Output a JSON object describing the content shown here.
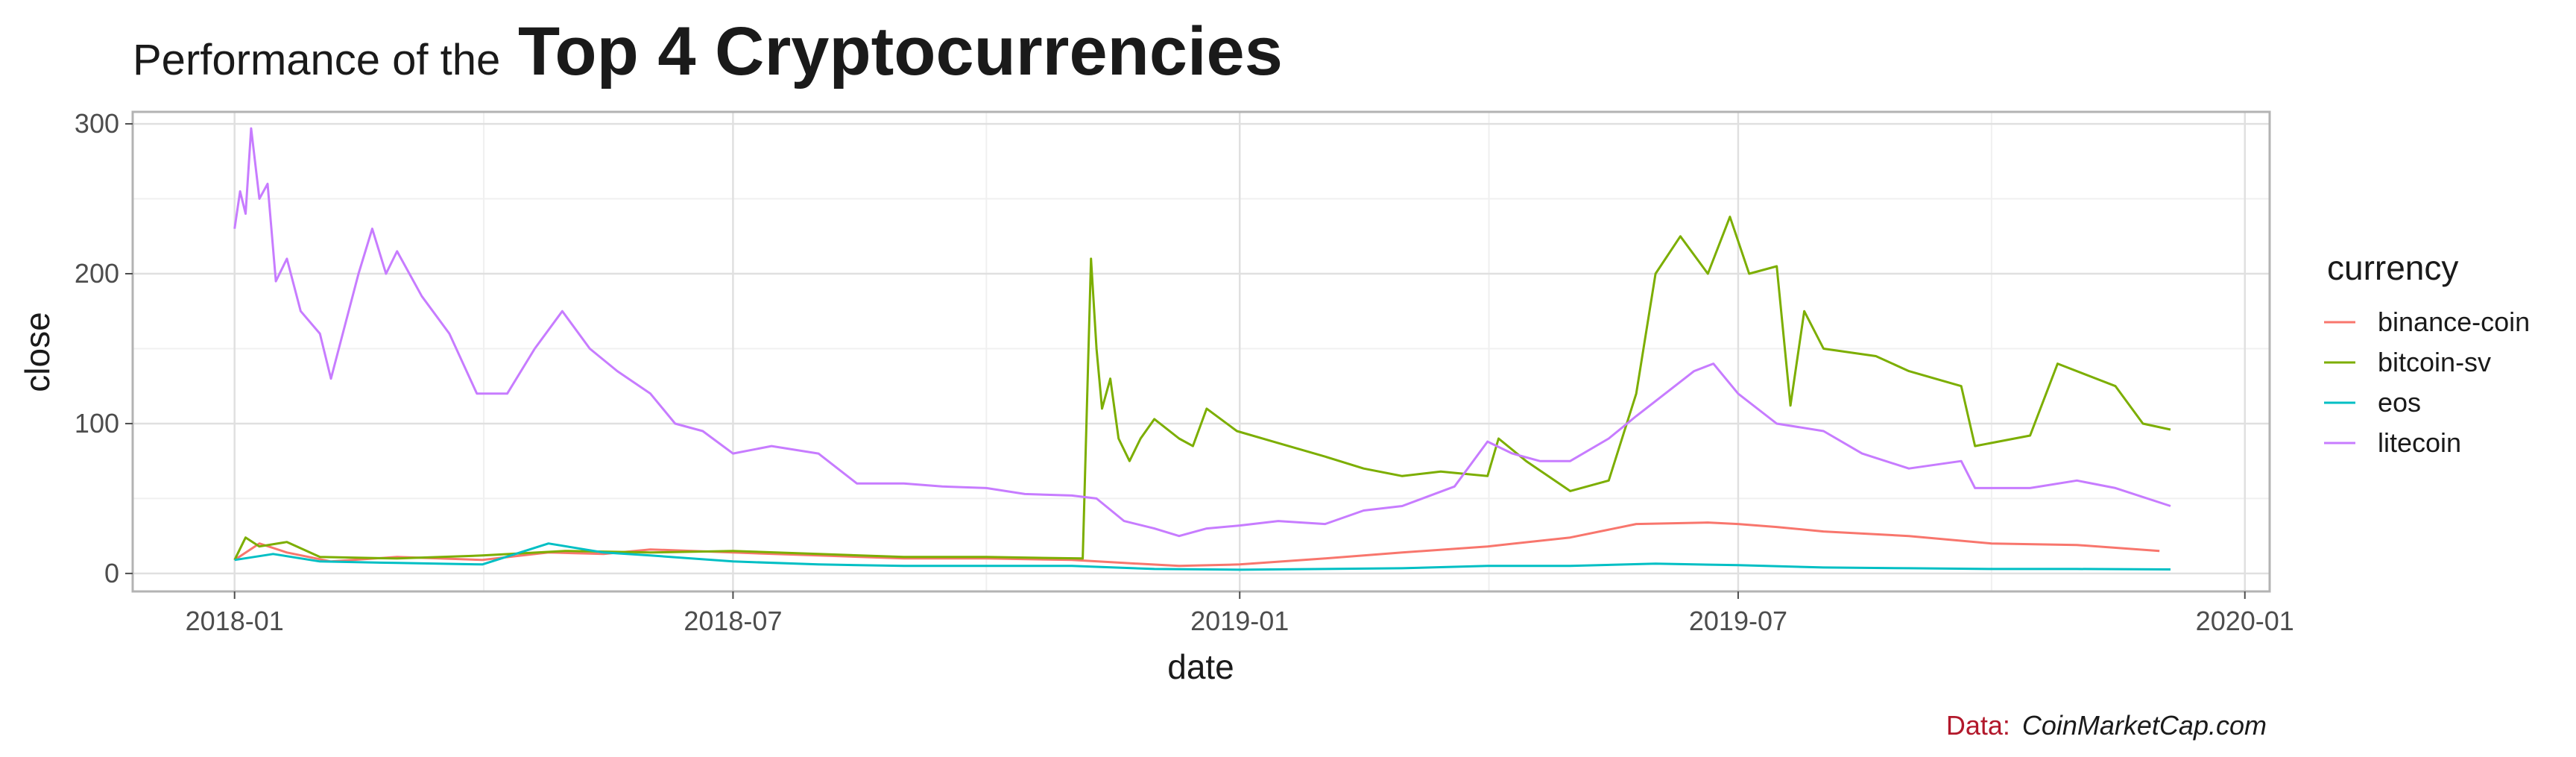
{
  "chart_data": {
    "type": "line",
    "title_prefix": "Performance of the",
    "title": "Top 4 Cryptocurrencies",
    "xlabel": "date",
    "ylabel": "close",
    "x_ticks": [
      "2018-01",
      "2018-07",
      "2019-01",
      "2019-07",
      "2020-01"
    ],
    "y_ticks": [
      0,
      100,
      200,
      300
    ],
    "xlim": [
      "2017-11-25",
      "2020-01-10"
    ],
    "ylim": [
      -12,
      308
    ],
    "grid": true,
    "legend_title": "currency",
    "legend_position": "right",
    "series": [
      {
        "name": "binance-coin",
        "color": "#F8766D",
        "points": [
          [
            "2018-01-01",
            9
          ],
          [
            "2018-01-10",
            20
          ],
          [
            "2018-01-20",
            14
          ],
          [
            "2018-02-05",
            8
          ],
          [
            "2018-03-01",
            11
          ],
          [
            "2018-04-01",
            9
          ],
          [
            "2018-04-25",
            14
          ],
          [
            "2018-05-15",
            13
          ],
          [
            "2018-06-01",
            16
          ],
          [
            "2018-07-01",
            14
          ],
          [
            "2018-08-01",
            12
          ],
          [
            "2018-09-01",
            10
          ],
          [
            "2018-10-01",
            10
          ],
          [
            "2018-11-01",
            9
          ],
          [
            "2018-11-20",
            7
          ],
          [
            "2018-12-10",
            5
          ],
          [
            "2019-01-01",
            6
          ],
          [
            "2019-02-01",
            10
          ],
          [
            "2019-03-01",
            14
          ],
          [
            "2019-04-01",
            18
          ],
          [
            "2019-05-01",
            24
          ],
          [
            "2019-05-25",
            33
          ],
          [
            "2019-06-20",
            34
          ],
          [
            "2019-07-01",
            33
          ],
          [
            "2019-07-15",
            31
          ],
          [
            "2019-08-01",
            28
          ],
          [
            "2019-09-01",
            25
          ],
          [
            "2019-10-01",
            20
          ],
          [
            "2019-11-01",
            19
          ],
          [
            "2019-12-01",
            15
          ]
        ]
      },
      {
        "name": "bitcoin-sv",
        "color": "#7CAE00",
        "points": [
          [
            "2018-01-01",
            9
          ],
          [
            "2018-01-05",
            24
          ],
          [
            "2018-01-10",
            18
          ],
          [
            "2018-01-20",
            21
          ],
          [
            "2018-02-01",
            11
          ],
          [
            "2018-03-01",
            10
          ],
          [
            "2018-04-01",
            12
          ],
          [
            "2018-05-01",
            15
          ],
          [
            "2018-06-01",
            14
          ],
          [
            "2018-07-01",
            15
          ],
          [
            "2018-08-01",
            13
          ],
          [
            "2018-09-01",
            11
          ],
          [
            "2018-10-01",
            11
          ],
          [
            "2018-11-05",
            10
          ],
          [
            "2018-11-08",
            210
          ],
          [
            "2018-11-10",
            150
          ],
          [
            "2018-11-12",
            110
          ],
          [
            "2018-11-15",
            130
          ],
          [
            "2018-11-18",
            90
          ],
          [
            "2018-11-22",
            75
          ],
          [
            "2018-11-26",
            90
          ],
          [
            "2018-12-01",
            103
          ],
          [
            "2018-12-10",
            90
          ],
          [
            "2018-12-15",
            85
          ],
          [
            "2018-12-20",
            110
          ],
          [
            "2018-12-31",
            95
          ],
          [
            "2019-01-15",
            87
          ],
          [
            "2019-02-01",
            78
          ],
          [
            "2019-02-15",
            70
          ],
          [
            "2019-03-01",
            65
          ],
          [
            "2019-03-15",
            68
          ],
          [
            "2019-04-01",
            65
          ],
          [
            "2019-04-05",
            90
          ],
          [
            "2019-04-15",
            75
          ],
          [
            "2019-05-01",
            55
          ],
          [
            "2019-05-15",
            62
          ],
          [
            "2019-05-25",
            120
          ],
          [
            "2019-06-01",
            200
          ],
          [
            "2019-06-10",
            225
          ],
          [
            "2019-06-20",
            200
          ],
          [
            "2019-06-28",
            238
          ],
          [
            "2019-07-05",
            200
          ],
          [
            "2019-07-15",
            205
          ],
          [
            "2019-07-20",
            112
          ],
          [
            "2019-07-25",
            175
          ],
          [
            "2019-08-01",
            150
          ],
          [
            "2019-08-20",
            145
          ],
          [
            "2019-09-01",
            135
          ],
          [
            "2019-09-20",
            125
          ],
          [
            "2019-09-25",
            85
          ],
          [
            "2019-10-15",
            92
          ],
          [
            "2019-10-25",
            140
          ],
          [
            "2019-11-15",
            125
          ],
          [
            "2019-11-25",
            100
          ],
          [
            "2019-12-05",
            96
          ]
        ]
      },
      {
        "name": "eos",
        "color": "#00BFC4",
        "points": [
          [
            "2018-01-01",
            9
          ],
          [
            "2018-01-15",
            13
          ],
          [
            "2018-02-01",
            8
          ],
          [
            "2018-03-01",
            7
          ],
          [
            "2018-04-01",
            6
          ],
          [
            "2018-04-25",
            20
          ],
          [
            "2018-05-15",
            14
          ],
          [
            "2018-06-01",
            12
          ],
          [
            "2018-07-01",
            8
          ],
          [
            "2018-08-01",
            6
          ],
          [
            "2018-09-01",
            5
          ],
          [
            "2018-10-01",
            5
          ],
          [
            "2018-11-01",
            5
          ],
          [
            "2018-12-01",
            3
          ],
          [
            "2019-01-01",
            2.5
          ],
          [
            "2019-02-01",
            3
          ],
          [
            "2019-03-01",
            3.5
          ],
          [
            "2019-04-01",
            5
          ],
          [
            "2019-05-01",
            5
          ],
          [
            "2019-06-01",
            6.5
          ],
          [
            "2019-07-01",
            5.5
          ],
          [
            "2019-08-01",
            4
          ],
          [
            "2019-09-01",
            3.5
          ],
          [
            "2019-10-01",
            3
          ],
          [
            "2019-11-01",
            3
          ],
          [
            "2019-12-05",
            2.7
          ]
        ]
      },
      {
        "name": "litecoin",
        "color": "#C77CFF",
        "points": [
          [
            "2018-01-01",
            230
          ],
          [
            "2018-01-03",
            255
          ],
          [
            "2018-01-05",
            240
          ],
          [
            "2018-01-07",
            297
          ],
          [
            "2018-01-10",
            250
          ],
          [
            "2018-01-13",
            260
          ],
          [
            "2018-01-16",
            195
          ],
          [
            "2018-01-20",
            210
          ],
          [
            "2018-01-25",
            175
          ],
          [
            "2018-02-01",
            160
          ],
          [
            "2018-02-05",
            130
          ],
          [
            "2018-02-10",
            165
          ],
          [
            "2018-02-15",
            200
          ],
          [
            "2018-02-20",
            230
          ],
          [
            "2018-02-25",
            200
          ],
          [
            "2018-03-01",
            215
          ],
          [
            "2018-03-10",
            185
          ],
          [
            "2018-03-20",
            160
          ],
          [
            "2018-03-30",
            120
          ],
          [
            "2018-04-10",
            120
          ],
          [
            "2018-04-20",
            150
          ],
          [
            "2018-04-30",
            175
          ],
          [
            "2018-05-10",
            150
          ],
          [
            "2018-05-20",
            135
          ],
          [
            "2018-06-01",
            120
          ],
          [
            "2018-06-10",
            100
          ],
          [
            "2018-06-20",
            95
          ],
          [
            "2018-07-01",
            80
          ],
          [
            "2018-07-15",
            85
          ],
          [
            "2018-08-01",
            80
          ],
          [
            "2018-08-15",
            60
          ],
          [
            "2018-09-01",
            60
          ],
          [
            "2018-09-15",
            58
          ],
          [
            "2018-10-01",
            57
          ],
          [
            "2018-10-15",
            53
          ],
          [
            "2018-11-01",
            52
          ],
          [
            "2018-11-10",
            50
          ],
          [
            "2018-11-20",
            35
          ],
          [
            "2018-12-01",
            30
          ],
          [
            "2018-12-10",
            25
          ],
          [
            "2018-12-20",
            30
          ],
          [
            "2019-01-01",
            32
          ],
          [
            "2019-01-15",
            35
          ],
          [
            "2019-02-01",
            33
          ],
          [
            "2019-02-15",
            42
          ],
          [
            "2019-03-01",
            45
          ],
          [
            "2019-03-20",
            58
          ],
          [
            "2019-04-01",
            88
          ],
          [
            "2019-04-10",
            80
          ],
          [
            "2019-04-20",
            75
          ],
          [
            "2019-05-01",
            75
          ],
          [
            "2019-05-15",
            90
          ],
          [
            "2019-05-25",
            105
          ],
          [
            "2019-06-01",
            115
          ],
          [
            "2019-06-15",
            135
          ],
          [
            "2019-06-22",
            140
          ],
          [
            "2019-07-01",
            120
          ],
          [
            "2019-07-15",
            100
          ],
          [
            "2019-08-01",
            95
          ],
          [
            "2019-08-15",
            80
          ],
          [
            "2019-09-01",
            70
          ],
          [
            "2019-09-20",
            75
          ],
          [
            "2019-09-25",
            57
          ],
          [
            "2019-10-15",
            57
          ],
          [
            "2019-11-01",
            62
          ],
          [
            "2019-11-15",
            57
          ],
          [
            "2019-12-05",
            45
          ]
        ]
      }
    ]
  },
  "caption": {
    "label": "Data:",
    "source": "CoinMarketCap.com"
  }
}
